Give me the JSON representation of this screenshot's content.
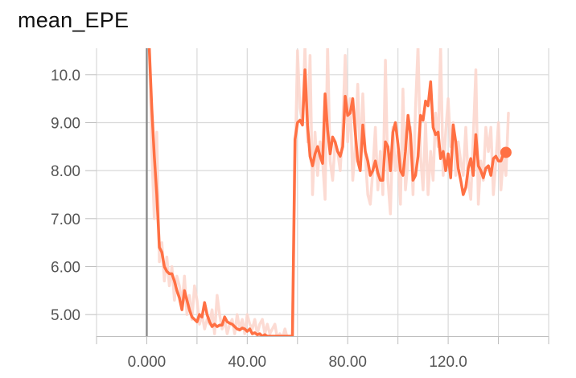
{
  "chart_data": {
    "type": "line",
    "title": "mean_EPE",
    "xlabel": "",
    "ylabel": "",
    "xlim": [
      -20,
      160
    ],
    "ylim": [
      4.55,
      10.55
    ],
    "x_ticks": [
      0,
      40,
      80,
      120
    ],
    "x_tick_labels": [
      "0.000",
      "40.00",
      "80.00",
      "120.0"
    ],
    "y_ticks": [
      5,
      6,
      7,
      8,
      9,
      10
    ],
    "y_tick_labels": [
      "5.00",
      "6.00",
      "7.00",
      "8.00",
      "9.00",
      "10.0"
    ],
    "grid": true,
    "colors": {
      "smoothed": "#ff7043",
      "raw": "#fbd5cb",
      "grid": "#d9d9d9",
      "axis": "#8a8a8a"
    },
    "series": [
      {
        "role": "raw",
        "x": [
          1,
          2,
          3,
          4,
          5,
          6,
          7,
          8,
          9,
          10,
          11,
          12,
          13,
          14,
          15,
          16,
          17,
          18,
          19,
          20,
          21,
          22,
          23,
          24,
          25,
          26,
          27,
          28,
          29,
          30,
          31,
          32,
          33,
          34,
          35,
          36,
          37,
          38,
          39,
          40,
          41,
          42,
          43,
          44,
          45,
          46,
          47,
          48,
          49,
          50,
          51,
          52,
          53,
          54,
          55,
          56,
          57,
          58,
          59,
          60,
          61,
          62,
          63,
          64,
          65,
          66,
          67,
          68,
          69,
          70,
          71,
          72,
          73,
          74,
          75,
          76,
          77,
          78,
          79,
          80,
          81,
          82,
          83,
          84,
          85,
          86,
          87,
          88,
          89,
          90,
          91,
          92,
          93,
          94,
          95,
          96,
          97,
          98,
          99,
          100,
          101,
          102,
          103,
          104,
          105,
          106,
          107,
          108,
          109,
          110,
          111,
          112,
          113,
          114,
          115,
          116,
          117,
          118,
          119,
          120,
          121,
          122,
          123,
          124,
          125,
          126,
          127,
          128,
          129,
          130,
          131,
          132,
          133,
          134,
          135,
          136,
          137,
          138,
          139,
          140,
          141,
          142,
          143,
          144
        ],
        "y": [
          10.6,
          8.4,
          7.0,
          8.8,
          6.1,
          6.5,
          5.7,
          6.2,
          5.6,
          6.0,
          5.3,
          5.8,
          5.6,
          5.2,
          5.8,
          5.0,
          5.4,
          4.9,
          5.6,
          5.3,
          4.8,
          5.0,
          4.7,
          4.9,
          4.8,
          5.1,
          4.6,
          5.4,
          5.0,
          4.7,
          4.9,
          4.6,
          4.8,
          4.9,
          4.6,
          5.0,
          4.7,
          4.9,
          4.6,
          5.0,
          4.8,
          4.7,
          4.9,
          4.6,
          4.8,
          4.9,
          4.6,
          4.8,
          4.6,
          4.7,
          4.8,
          4.5,
          4.6,
          4.5,
          4.7,
          4.5,
          4.5,
          4.5,
          8.0,
          10.5,
          9.3,
          9.0,
          10.6,
          8.6,
          10.4,
          7.5,
          8.8,
          7.9,
          8.6,
          8.2,
          7.4,
          10.6,
          8.2,
          7.8,
          8.6,
          8.4,
          8.0,
          8.9,
          10.4,
          8.6,
          9.5,
          7.8,
          8.5,
          9.8,
          8.2,
          9.6,
          8.3,
          7.5,
          7.3,
          8.0,
          8.9,
          7.6,
          8.4,
          7.5,
          10.3,
          7.8,
          7.1,
          8.9,
          8.0,
          8.4,
          7.3,
          9.7,
          7.6,
          8.2,
          8.9,
          7.5,
          9.3,
          10.6,
          8.3,
          7.6,
          9.0,
          7.5,
          8.4,
          7.8,
          9.2,
          8.5,
          10.6,
          7.9,
          8.8,
          9.5,
          8.5,
          9.0,
          7.9,
          8.6,
          8.2,
          7.9,
          8.9,
          7.8,
          7.4,
          8.7,
          10.1,
          7.3,
          8.2,
          7.8,
          8.9,
          8.4,
          8.9,
          7.5,
          8.2,
          9.0,
          7.6,
          8.3,
          7.9,
          9.2
        ]
      },
      {
        "role": "smoothed",
        "x": [
          1,
          2,
          3,
          4,
          5,
          6,
          7,
          8,
          9,
          10,
          11,
          12,
          13,
          14,
          15,
          16,
          17,
          18,
          19,
          20,
          21,
          22,
          23,
          24,
          25,
          26,
          27,
          28,
          29,
          30,
          31,
          32,
          33,
          34,
          35,
          36,
          37,
          38,
          39,
          40,
          41,
          42,
          43,
          44,
          45,
          46,
          47,
          48,
          49,
          50,
          51,
          52,
          53,
          54,
          55,
          56,
          57,
          58,
          59,
          60,
          61,
          62,
          63,
          64,
          65,
          66,
          67,
          68,
          69,
          70,
          71,
          72,
          73,
          74,
          75,
          76,
          77,
          78,
          79,
          80,
          81,
          82,
          83,
          84,
          85,
          86,
          87,
          88,
          89,
          90,
          91,
          92,
          93,
          94,
          95,
          96,
          97,
          98,
          99,
          100,
          101,
          102,
          103,
          104,
          105,
          106,
          107,
          108,
          109,
          110,
          111,
          112,
          113,
          114,
          115,
          116,
          117,
          118,
          119,
          120,
          121,
          122,
          123,
          124,
          125,
          126,
          127,
          128,
          129,
          130,
          131,
          132,
          133,
          134,
          135,
          136,
          137,
          138,
          139,
          140,
          141,
          142,
          143,
          144
        ],
        "y": [
          10.55,
          9.3,
          8.3,
          7.5,
          6.4,
          6.3,
          6.0,
          5.9,
          5.85,
          5.85,
          5.7,
          5.5,
          5.35,
          5.1,
          5.5,
          5.3,
          5.1,
          4.95,
          4.9,
          4.85,
          5.0,
          4.95,
          5.25,
          5.0,
          4.85,
          4.75,
          4.8,
          4.75,
          4.78,
          4.78,
          4.95,
          4.85,
          4.82,
          4.8,
          4.75,
          4.7,
          4.68,
          4.72,
          4.7,
          4.65,
          4.7,
          4.6,
          4.62,
          4.58,
          4.6,
          4.55,
          4.58,
          4.55,
          4.55,
          4.55,
          4.55,
          4.55,
          4.55,
          4.55,
          4.55,
          4.55,
          4.55,
          4.55,
          8.65,
          9.0,
          9.05,
          8.95,
          10.1,
          8.95,
          8.3,
          8.1,
          8.35,
          8.5,
          8.3,
          8.15,
          9.6,
          8.85,
          8.35,
          8.7,
          8.6,
          8.4,
          8.3,
          8.5,
          9.55,
          9.15,
          9.2,
          9.5,
          8.8,
          8.2,
          8.0,
          8.95,
          8.4,
          8.2,
          7.9,
          8.0,
          8.2,
          7.95,
          7.8,
          7.8,
          8.6,
          8.5,
          8.0,
          8.8,
          9.0,
          8.55,
          8.0,
          7.9,
          8.4,
          9.15,
          8.75,
          7.8,
          7.9,
          8.3,
          9.15,
          9.05,
          9.45,
          9.35,
          9.85,
          8.9,
          8.75,
          8.8,
          8.25,
          8.4,
          8.0,
          8.35,
          7.85,
          8.95,
          8.6,
          8.05,
          7.8,
          7.5,
          7.65,
          8.05,
          8.25,
          7.9,
          8.75,
          8.1,
          8.0,
          7.85,
          8.05,
          8.1,
          7.9,
          8.25,
          8.3,
          8.2,
          8.2,
          8.35,
          8.38,
          8.38
        ]
      }
    ],
    "last_point": {
      "x": 143,
      "y": 8.38
    }
  }
}
